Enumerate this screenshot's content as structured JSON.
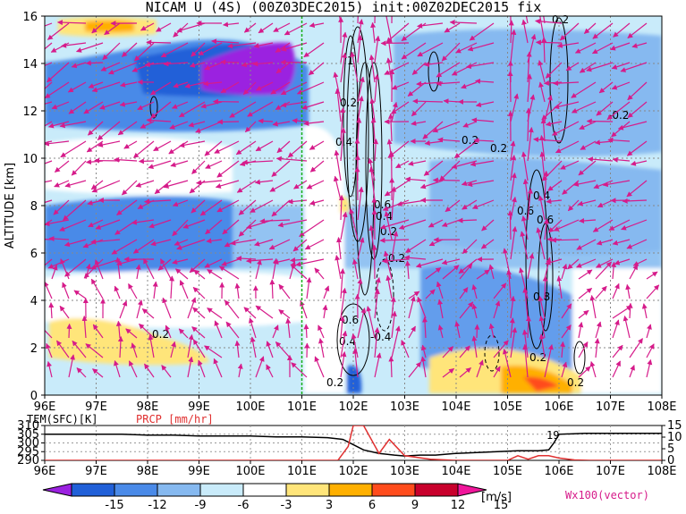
{
  "title": "NICAM U (4S) (00Z03DEC2015) init:00Z02DEC2015 fix",
  "chart_data": [
    {
      "type": "heatmap",
      "title": "NICAM U (4S) (00Z03DEC2015) init:00Z02DEC2015 fix",
      "ylabel": "ALTITUDE [km]",
      "xlim": [
        96,
        108
      ],
      "ylim": [
        0,
        16
      ],
      "x_ticks": [
        "96E",
        "97E",
        "98E",
        "99E",
        "100E",
        "101E",
        "102E",
        "103E",
        "104E",
        "105E",
        "106E",
        "107E",
        "108E"
      ],
      "y_ticks": [
        "0",
        "2",
        "4",
        "6",
        "8",
        "10",
        "12",
        "14",
        "16"
      ],
      "grid": true,
      "marker_line_lon": 101,
      "contour_labels": [
        "0.2",
        "0.4",
        "0.6",
        "0.8",
        "1",
        "-0.2",
        "-0.4"
      ],
      "vector_label": "Wx100(vector)"
    },
    {
      "type": "line",
      "xlim": [
        96,
        108
      ],
      "left_axis": {
        "label": "TEM(SFC)[K]",
        "ticks": [
          "310",
          "305",
          "300",
          "295",
          "290"
        ],
        "ylim": [
          290,
          310
        ]
      },
      "right_axis": {
        "label": "PRCP [mm/hr]",
        "ticks": [
          "15",
          "10",
          "5",
          "0"
        ],
        "ylim": [
          0,
          15
        ]
      },
      "series": [
        {
          "name": "TEM(SFC)[K]",
          "color": "#000000",
          "x": [
            96.0,
            96.5,
            97.0,
            97.5,
            98.0,
            98.5,
            99.0,
            99.5,
            100.0,
            100.5,
            101.0,
            101.5,
            101.8,
            102.0,
            102.2,
            102.5,
            102.8,
            103.0,
            103.3,
            103.6,
            104.0,
            104.4,
            104.8,
            105.2,
            105.6,
            105.8,
            105.9,
            106.0,
            106.5,
            107.0,
            107.5,
            108.0
          ],
          "y": [
            305,
            305,
            305,
            305,
            304.5,
            304.5,
            304,
            304,
            304,
            303.5,
            303.5,
            303,
            302,
            299,
            296,
            294,
            293,
            292.5,
            293,
            293,
            294,
            294.5,
            295,
            295.5,
            295.5,
            296,
            300,
            305,
            305.5,
            305.5,
            305.5,
            305.5
          ]
        },
        {
          "name": "PRCP [mm/hr]",
          "color": "#e03030",
          "x": [
            96.0,
            97.0,
            98.0,
            99.0,
            100.0,
            101.0,
            101.7,
            101.9,
            102.0,
            102.2,
            102.5,
            102.7,
            103.0,
            103.5,
            104.0,
            104.5,
            105.0,
            105.2,
            105.4,
            105.6,
            105.8,
            106.0,
            106.3,
            106.6,
            107.0,
            108.0
          ],
          "y": [
            0,
            0,
            0,
            0,
            0,
            0,
            0,
            6,
            15,
            15,
            3,
            9,
            2,
            0.5,
            0,
            0,
            0,
            2,
            0.5,
            2,
            2,
            1,
            0.2,
            0,
            0,
            0
          ]
        }
      ],
      "annotation": "19"
    }
  ],
  "colorbar": {
    "ticks": [
      "-15",
      "-12",
      "-9",
      "-6",
      "-3",
      "3",
      "6",
      "9",
      "12",
      "15"
    ],
    "colors": [
      "#9b21e0",
      "#2160d8",
      "#4a8ae8",
      "#86b9f0",
      "#c9ebfa",
      "#ffffff",
      "#ffe57a",
      "#ffb000",
      "#ff4c1c",
      "#c8002c",
      "#f0169b"
    ],
    "unit": "[m/s]"
  }
}
